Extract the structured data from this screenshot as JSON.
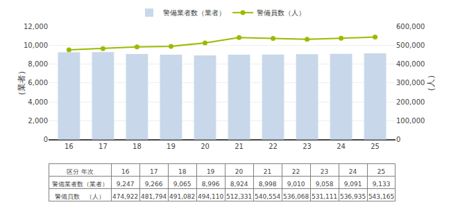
{
  "chart_data": {
    "type": "bar",
    "categories": [
      "16",
      "17",
      "18",
      "19",
      "20",
      "21",
      "22",
      "23",
      "24",
      "25"
    ],
    "series": [
      {
        "name": "警備業者数（業者）",
        "type": "bar",
        "color": "#c8d8ea",
        "values": [
          9247,
          9266,
          9065,
          8996,
          8924,
          8998,
          9010,
          9058,
          9091,
          9133
        ]
      },
      {
        "name": "警備員数（人）",
        "type": "line",
        "color": "#99bb00",
        "marker": "circle",
        "axis": "y2",
        "values": [
          474922,
          481794,
          491082,
          494110,
          512331,
          540554,
          536068,
          531111,
          536935,
          543165
        ]
      }
    ],
    "ylabel": "（業者）",
    "y2label": "（人）",
    "ylim": [
      0,
      12000
    ],
    "yticks": [
      0,
      {
        "value": 2000,
        "label": "2,000"
      },
      {
        "value": 4000,
        "label": "4,000"
      },
      {
        "value": 6000,
        "label": "6,000"
      },
      {
        "value": 8000,
        "label": "8,000"
      },
      {
        "value": 10000,
        "label": "10,000"
      },
      {
        "value": 12000,
        "label": "12,000"
      }
    ],
    "y2lim": [
      0,
      600000
    ],
    "y2ticks": [
      0,
      {
        "value": 100000,
        "label": "100,000"
      },
      {
        "value": 200000,
        "label": "200,000"
      },
      {
        "value": 300000,
        "label": "300,000"
      },
      {
        "value": 400000,
        "label": "400,000"
      },
      {
        "value": 500000,
        "label": "500,000"
      },
      {
        "value": 600000,
        "label": "600,000"
      }
    ],
    "grid": true,
    "legend": "top",
    "table": {
      "corner": [
        "区分",
        "年次"
      ],
      "row_labels": [
        "警備業者数（業者）",
        "警備員数　（人）"
      ],
      "cells": [
        [
          "9,247",
          "9,266",
          "9,065",
          "8,996",
          "8,924",
          "8,998",
          "9,010",
          "9,058",
          "9,091",
          "9,133"
        ],
        [
          "474,922",
          "481,794",
          "491,082",
          "494,110",
          "512,331",
          "540,554",
          "536,068",
          "531,111",
          "536,935",
          "543,165"
        ]
      ]
    }
  }
}
